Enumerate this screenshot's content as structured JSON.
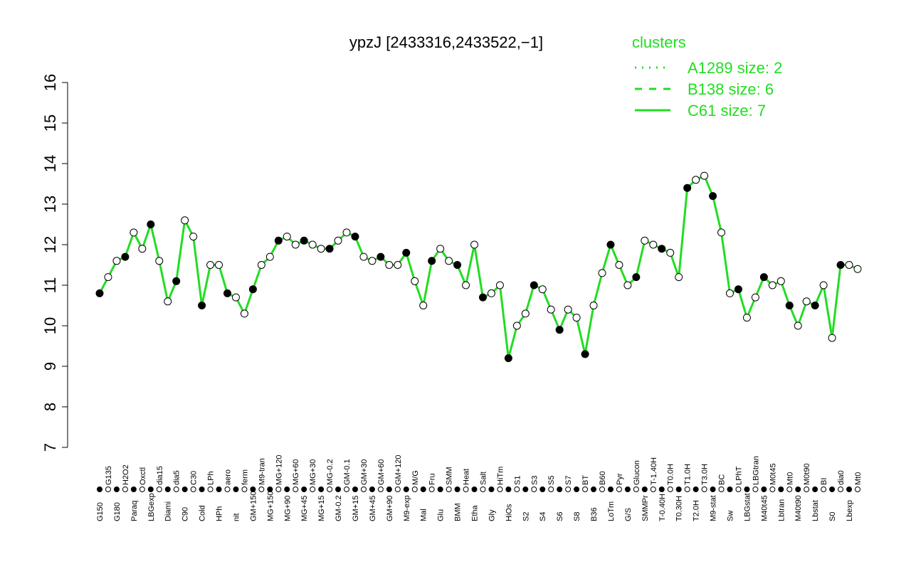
{
  "chart_data": {
    "type": "line",
    "title": "ypzJ [2433316,2433522,−1]",
    "legend": {
      "title": "clusters",
      "position": "top-right",
      "color": "#22dd22",
      "items": [
        {
          "name": "A1289 size: 2",
          "style": "dotted"
        },
        {
          "name": "B138 size: 6",
          "style": "dashed"
        },
        {
          "name": "C61 size: 7",
          "style": "solid"
        }
      ]
    },
    "ylim": [
      7,
      16
    ],
    "yticks": [
      7,
      8,
      9,
      10,
      11,
      12,
      13,
      14,
      15,
      16
    ],
    "categories": [
      "G150",
      "G135",
      "G180",
      "H2O2",
      "Paraq",
      "Oxctl",
      "LBGexp",
      "dia15",
      "Diami",
      "dia5",
      "C90",
      "C30",
      "Cold",
      "LPh",
      "HPh",
      "aero",
      "nit",
      "ferm",
      "GM+150",
      "M9-tran",
      "MG+150",
      "MG+120",
      "MG+90",
      "MG+60",
      "MG+45",
      "MG+30",
      "MG+15",
      "MG-0.2",
      "GM-0.2",
      "GM-0.1",
      "GM+15",
      "GM+30",
      "GM+45",
      "GM+60",
      "GM+90",
      "GM+120",
      "M9-exp",
      "M/G",
      "Mal",
      "Fru",
      "Glu",
      "SMM",
      "BMM",
      "Heat",
      "Etha",
      "Salt",
      "Gly",
      "HiTm",
      "HiOs",
      "S1",
      "S2",
      "S3",
      "S4",
      "S5",
      "S6",
      "S7",
      "S8",
      "BT",
      "B36",
      "B60",
      "LoTm",
      "Pyr",
      "G/S",
      "Glucon",
      "SMMPr",
      "T-1.40H",
      "T-0.40H",
      "T0.0H",
      "T0.30H",
      "T1.0H",
      "T2.0H",
      "T3.0H",
      "M9-stat",
      "BC",
      "Sw",
      "LPhT",
      "LBGstat",
      "LBGtran",
      "M40t45",
      "M0t45",
      "Lbtran",
      "Mt0",
      "M40t90",
      "M0t90",
      "Lbstat",
      "BI",
      "S0",
      "dia0",
      "Lbexp",
      "Mt0"
    ],
    "values": [
      10.8,
      11.2,
      11.6,
      11.7,
      12.3,
      11.9,
      12.5,
      11.6,
      10.6,
      11.1,
      12.6,
      12.2,
      10.5,
      11.5,
      11.5,
      10.8,
      10.7,
      10.3,
      10.9,
      11.5,
      11.7,
      12.1,
      12.2,
      12.0,
      12.1,
      12.0,
      11.9,
      11.9,
      12.1,
      12.3,
      12.2,
      11.7,
      11.6,
      11.7,
      11.5,
      11.5,
      11.8,
      11.1,
      10.5,
      11.6,
      11.9,
      11.6,
      11.5,
      11.0,
      12.0,
      10.7,
      10.8,
      11.0,
      9.2,
      10.0,
      10.3,
      11.0,
      10.9,
      10.4,
      9.9,
      10.4,
      10.2,
      9.3,
      10.5,
      11.3,
      12.0,
      11.5,
      11.0,
      11.2,
      12.1,
      12.0,
      11.9,
      11.8,
      11.2,
      13.4,
      13.6,
      13.7,
      13.2,
      12.3,
      10.8,
      10.9,
      10.2,
      10.7,
      11.2,
      11.0,
      11.1,
      10.5,
      10.0,
      10.6,
      10.5,
      11.0,
      9.7,
      11.5,
      11.5,
      11.4
    ]
  }
}
